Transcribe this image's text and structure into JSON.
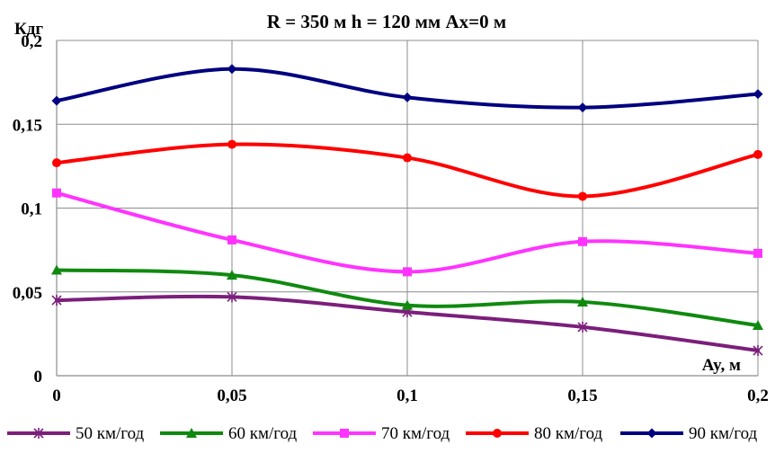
{
  "chart_data": {
    "type": "line",
    "title": "R = 350 м  h = 120 мм   Ax=0 м",
    "ylabel": "Кдг",
    "xlabel": "Ay, м",
    "x": [
      0,
      0.05,
      0.1,
      0.15,
      0.2
    ],
    "x_tick_labels": [
      "0",
      "0,05",
      "0,1",
      "0,15",
      "0,2"
    ],
    "ylim": [
      0,
      0.2
    ],
    "y_ticks": [
      0,
      0.05,
      0.1,
      0.15,
      0.2
    ],
    "y_tick_labels": [
      "0",
      "0,05",
      "0,1",
      "0,15",
      "0,2"
    ],
    "grid": true,
    "legend_position": "bottom",
    "series": [
      {
        "name": "50 км/год",
        "color": "#7b1f7b",
        "marker": "star",
        "values": [
          0.045,
          0.047,
          0.038,
          0.029,
          0.015
        ]
      },
      {
        "name": "60 км/год",
        "color": "#0f8a0f",
        "marker": "triangle",
        "values": [
          0.063,
          0.06,
          0.042,
          0.044,
          0.03
        ]
      },
      {
        "name": "70 км/год",
        "color": "#ff33ff",
        "marker": "square",
        "values": [
          0.109,
          0.081,
          0.062,
          0.08,
          0.073
        ]
      },
      {
        "name": "80 км/год",
        "color": "#ff0000",
        "marker": "circle",
        "values": [
          0.127,
          0.138,
          0.13,
          0.107,
          0.132
        ]
      },
      {
        "name": "90 км/год",
        "color": "#000080",
        "marker": "diamond",
        "values": [
          0.164,
          0.183,
          0.166,
          0.16,
          0.168
        ]
      }
    ]
  }
}
